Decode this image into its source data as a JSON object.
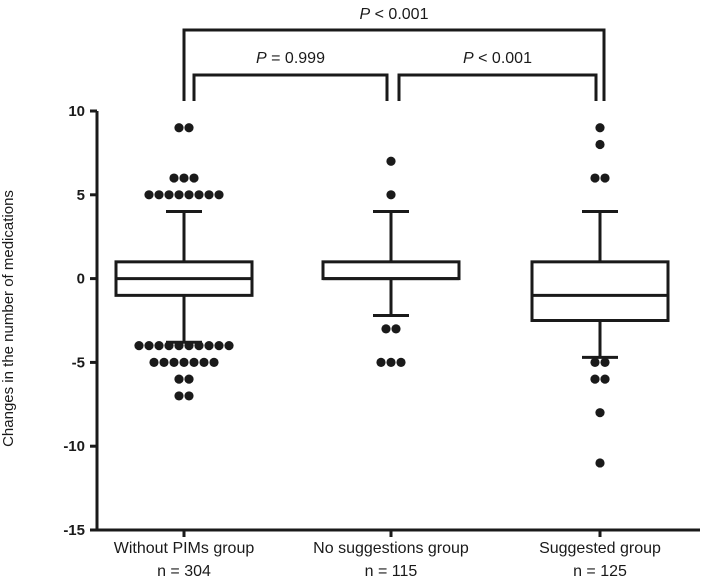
{
  "chart_data": {
    "type": "box",
    "ylabel": "Changes in the number of medications",
    "ylim": [
      -15,
      10
    ],
    "yticks": [
      10,
      5,
      0,
      -5,
      -10,
      -15
    ],
    "ytick_labels": [
      "10",
      "5",
      "0",
      "-5",
      "-10",
      "-15"
    ],
    "groups": [
      {
        "label": "Without PIMs group",
        "n_label": "n = 304",
        "whisker_low": -3.8,
        "q1": -1,
        "median": 0,
        "q3": 1,
        "whisker_high": 4,
        "outliers": [
          9,
          9,
          6,
          6,
          6,
          5,
          5,
          5,
          5,
          5,
          5,
          5,
          5,
          -4,
          -4,
          -4,
          -4,
          -4,
          -4,
          -4,
          -4,
          -4,
          -4,
          -5,
          -5,
          -5,
          -5,
          -5,
          -5,
          -5,
          -6,
          -6,
          -7,
          -7
        ]
      },
      {
        "label": "No suggestions group",
        "n_label": "n = 115",
        "whisker_low": -2.2,
        "q1": 0,
        "median": 0,
        "q3": 1,
        "whisker_high": 4,
        "outliers": [
          7,
          5,
          -3,
          -3,
          -5,
          -5,
          -5
        ]
      },
      {
        "label": "Suggested group",
        "n_label": "n = 125",
        "whisker_low": -4.7,
        "q1": -2.5,
        "median": -1,
        "q3": 1,
        "whisker_high": 4,
        "outliers": [
          9,
          8,
          6,
          6,
          -5,
          -5,
          -6,
          -6,
          -8,
          -11
        ]
      }
    ],
    "comparisons": [
      {
        "from": 0,
        "to": 1,
        "label_prefix": "P",
        "label_rest": " = 0.999"
      },
      {
        "from": 1,
        "to": 2,
        "label_prefix": "P",
        "label_rest": " < 0.001"
      },
      {
        "from": 0,
        "to": 2,
        "label_prefix": "P",
        "label_rest": " < 0.001"
      }
    ]
  }
}
